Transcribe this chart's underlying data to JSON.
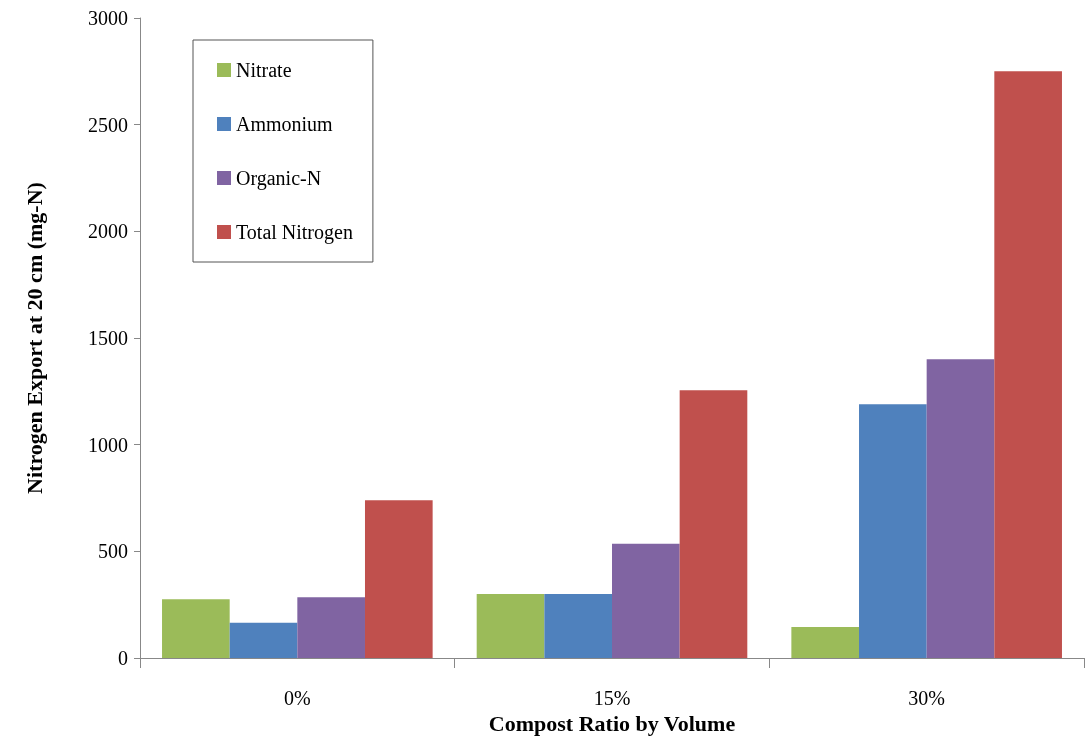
{
  "chart_data": {
    "type": "bar",
    "xlabel": "Compost Ratio by Volume",
    "ylabel": "Nitrogen Export at 20 cm (mg-N)",
    "categories": [
      "0%",
      "15%",
      "30%"
    ],
    "series": [
      {
        "name": "Nitrate",
        "color": "#9bbb59",
        "values": [
          275,
          300,
          145
        ]
      },
      {
        "name": "Ammonium",
        "color": "#4f81bd",
        "values": [
          165,
          300,
          1190
        ]
      },
      {
        "name": "Organic-N",
        "color": "#8064a2",
        "values": [
          285,
          535,
          1400
        ]
      },
      {
        "name": "Total Nitrogen",
        "color": "#c0504d",
        "values": [
          740,
          1255,
          2750
        ]
      }
    ],
    "ylim": [
      0,
      3000
    ],
    "yticks": [
      0,
      500,
      1000,
      1500,
      2000,
      2500,
      3000
    ],
    "grid": false,
    "legend": "top left"
  }
}
